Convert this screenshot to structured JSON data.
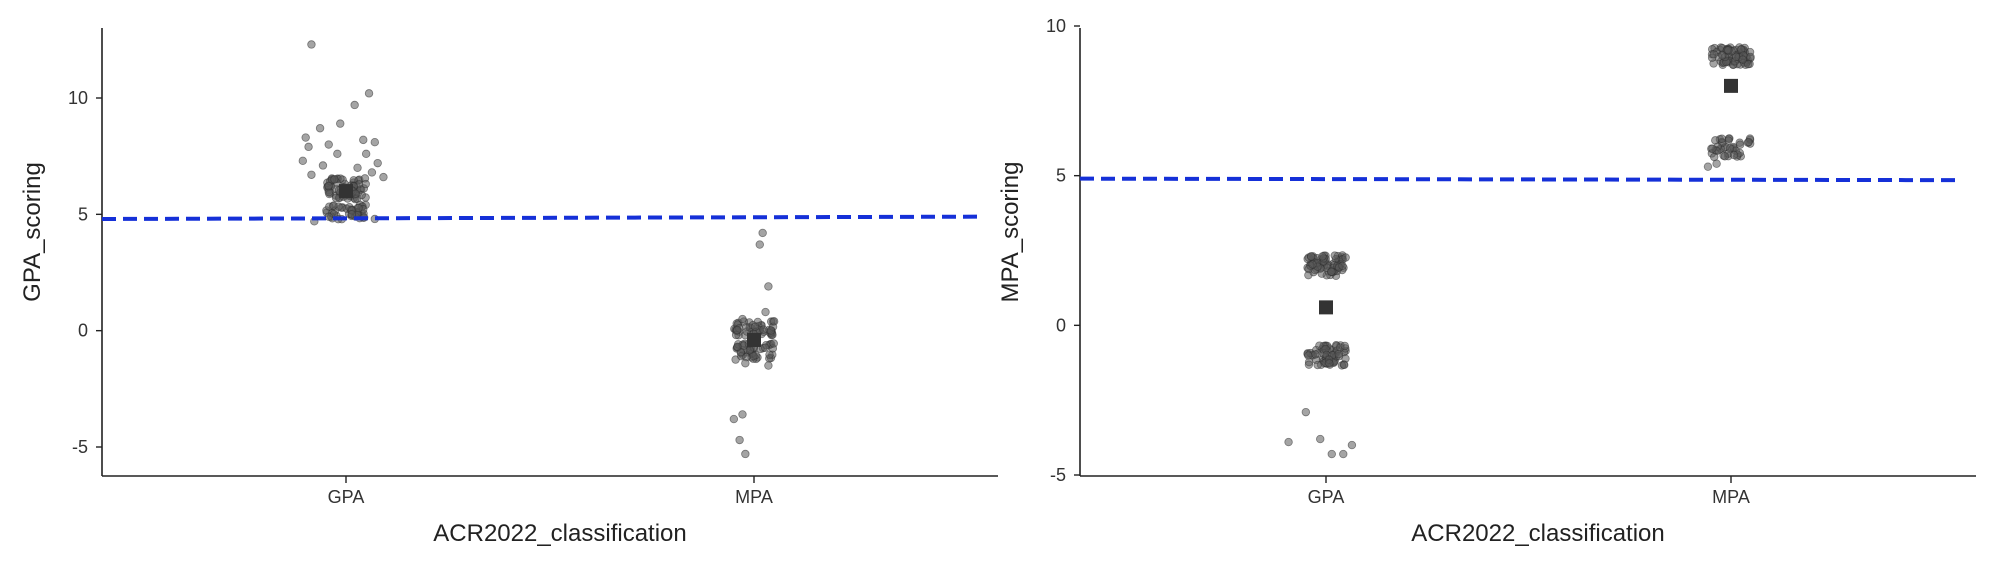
{
  "colors": {
    "point": "#5a5a5a",
    "mean_marker": "#333333",
    "threshold_line": "#1530d8",
    "axis": "#222222"
  },
  "chart_data": [
    {
      "type": "scatter",
      "style": "jittered strip plot with group mean markers and dashed threshold line",
      "xlabel": "ACR2022_classification",
      "ylabel": "GPA_scoring",
      "categories": [
        "GPA",
        "MPA"
      ],
      "ylim": [
        -6.2,
        13.2
      ],
      "yticks": [
        -5,
        0,
        5,
        10
      ],
      "ytick_labels": [
        "-5",
        "0",
        "5",
        "10"
      ],
      "threshold": {
        "y_start": 4.8,
        "y_end": 4.9,
        "style": "dashed"
      },
      "means": [
        {
          "category": "GPA",
          "y": 6.0
        },
        {
          "category": "MPA",
          "y": -0.4
        }
      ],
      "groups": [
        {
          "category": "GPA",
          "points": [
            {
              "x": -0.12,
              "y": 12.3
            },
            {
              "x": 0.08,
              "y": 10.2
            },
            {
              "x": 0.03,
              "y": 9.7
            },
            {
              "x": -0.02,
              "y": 8.9
            },
            {
              "x": -0.09,
              "y": 8.7
            },
            {
              "x": -0.14,
              "y": 8.3
            },
            {
              "x": 0.06,
              "y": 8.2
            },
            {
              "x": 0.1,
              "y": 8.1
            },
            {
              "x": -0.06,
              "y": 8.0
            },
            {
              "x": -0.13,
              "y": 7.9
            },
            {
              "x": -0.03,
              "y": 7.6
            },
            {
              "x": 0.07,
              "y": 7.6
            },
            {
              "x": -0.15,
              "y": 7.3
            },
            {
              "x": 0.11,
              "y": 7.2
            },
            {
              "x": -0.08,
              "y": 7.1
            },
            {
              "x": 0.04,
              "y": 7.0
            },
            {
              "x": 0.09,
              "y": 6.8
            },
            {
              "x": -0.12,
              "y": 6.7
            },
            {
              "x": 0.13,
              "y": 6.6
            },
            {
              "x": -0.04,
              "y": 6.5
            },
            {
              "x": 0.02,
              "y": 5.0
            },
            {
              "x": -0.06,
              "y": 4.9
            },
            {
              "x": 0.1,
              "y": 4.8
            },
            {
              "x": -0.11,
              "y": 4.7
            }
          ]
        },
        {
          "category": "MPA",
          "points": [
            {
              "x": 0.03,
              "y": 4.2
            },
            {
              "x": 0.02,
              "y": 3.7
            },
            {
              "x": 0.05,
              "y": 1.9
            },
            {
              "x": 0.04,
              "y": 0.8
            },
            {
              "x": -0.04,
              "y": 0.5
            },
            {
              "x": 0.07,
              "y": 0.4
            },
            {
              "x": -0.03,
              "y": -1.4
            },
            {
              "x": 0.05,
              "y": -1.5
            },
            {
              "x": -0.04,
              "y": -3.6
            },
            {
              "x": -0.07,
              "y": -3.8
            },
            {
              "x": -0.05,
              "y": -4.7
            },
            {
              "x": -0.03,
              "y": -5.3
            }
          ]
        }
      ],
      "bands": [
        {
          "category": "GPA",
          "y_center": 6.1,
          "y_spread": 0.45,
          "count": 70
        },
        {
          "category": "GPA",
          "y_center": 5.1,
          "y_spread": 0.35,
          "count": 45
        },
        {
          "category": "MPA",
          "y_center": 0.1,
          "y_spread": 0.3,
          "count": 50
        },
        {
          "category": "MPA",
          "y_center": -0.9,
          "y_spread": 0.35,
          "count": 45
        }
      ]
    },
    {
      "type": "scatter",
      "style": "jittered strip plot with group mean markers and dashed threshold line",
      "xlabel": "ACR2022_classification",
      "ylabel": "MPA_scoring",
      "categories": [
        "GPA",
        "MPA"
      ],
      "ylim": [
        -5,
        10
      ],
      "yticks": [
        -5,
        0,
        5,
        10
      ],
      "ytick_labels": [
        "-5",
        "0",
        "5",
        "10"
      ],
      "threshold": {
        "y_start": 4.9,
        "y_end": 4.85,
        "style": "dashed"
      },
      "means": [
        {
          "category": "GPA",
          "y": 0.6
        },
        {
          "category": "MPA",
          "y": 8.0
        }
      ],
      "groups": [
        {
          "category": "GPA",
          "points": [
            {
              "x": -0.07,
              "y": -2.9
            },
            {
              "x": -0.13,
              "y": -3.9
            },
            {
              "x": -0.02,
              "y": -3.8
            },
            {
              "x": 0.09,
              "y": -4.0
            },
            {
              "x": 0.02,
              "y": -4.3
            },
            {
              "x": 0.06,
              "y": -4.3
            }
          ]
        },
        {
          "category": "MPA",
          "points": [
            {
              "x": -0.08,
              "y": 5.3
            },
            {
              "x": -0.05,
              "y": 5.4
            }
          ]
        }
      ],
      "bands": [
        {
          "category": "GPA",
          "y_center": 2.0,
          "y_spread": 0.35,
          "count": 75
        },
        {
          "category": "GPA",
          "y_center": -1.0,
          "y_spread": 0.35,
          "count": 65
        },
        {
          "category": "MPA",
          "y_center": 9.0,
          "y_spread": 0.3,
          "count": 75
        },
        {
          "category": "MPA",
          "y_center": 5.9,
          "y_spread": 0.35,
          "count": 40
        }
      ]
    }
  ]
}
